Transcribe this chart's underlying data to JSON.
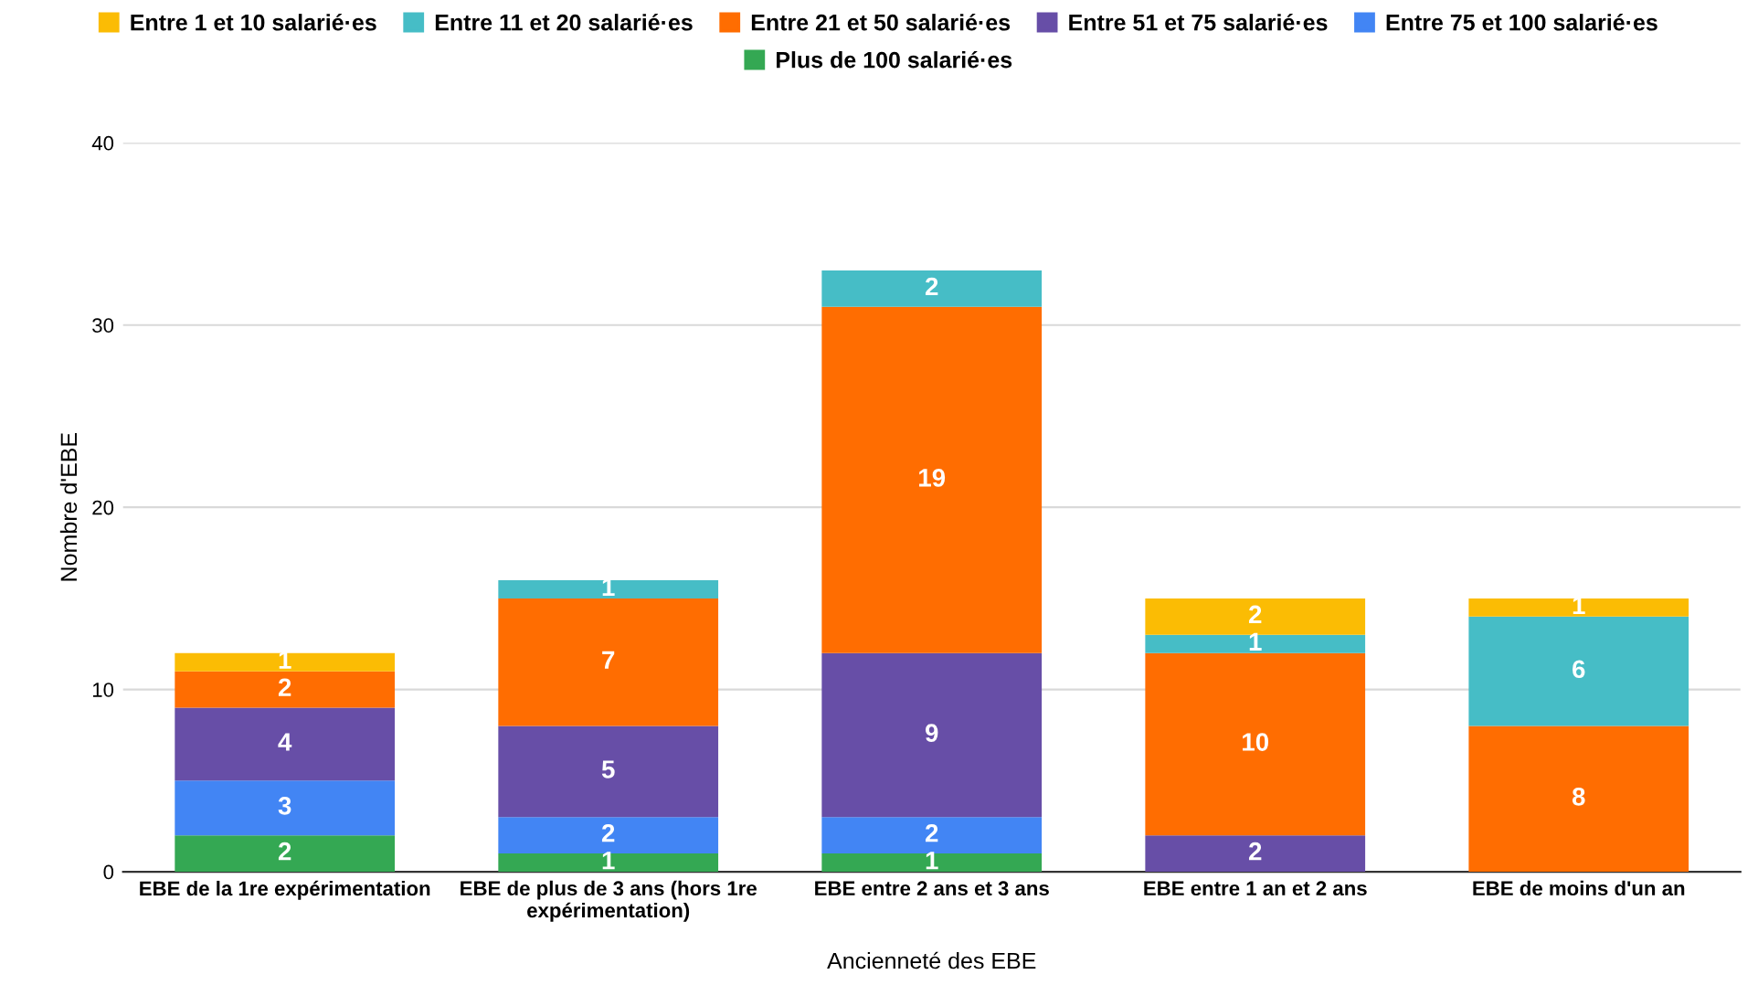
{
  "chart_data": {
    "type": "bar",
    "stacked": true,
    "xlabel": "Ancienneté des EBE",
    "ylabel": "Nombre d'EBE",
    "categories": [
      "EBE de la 1re expérimentation",
      "EBE de plus de 3 ans (hors 1re\nexpérimentation)",
      "EBE entre 2 ans et 3 ans",
      "EBE entre 1 an et 2 ans",
      "EBE de moins d'un an"
    ],
    "series": [
      {
        "name": "Plus de 100 salarié·es",
        "color": "#34a853",
        "values": [
          2,
          1,
          1,
          null,
          null
        ]
      },
      {
        "name": "Entre 75 et 100 salarié·es",
        "color": "#4285f4",
        "values": [
          3,
          2,
          2,
          null,
          null
        ]
      },
      {
        "name": "Entre 51 et 75 salarié·es",
        "color": "#674ea7",
        "values": [
          4,
          5,
          9,
          2,
          null
        ]
      },
      {
        "name": "Entre 21 et 50 salarié·es",
        "color": "#ff6d01",
        "values": [
          2,
          7,
          19,
          10,
          8
        ]
      },
      {
        "name": "Entre 11 et 20 salarié·es",
        "color": "#46bdc6",
        "values": [
          null,
          1,
          2,
          1,
          6
        ]
      },
      {
        "name": "Entre 1 et 10 salarié·es",
        "color": "#fbbc04",
        "values": [
          1,
          null,
          null,
          2,
          1
        ]
      }
    ],
    "ylim": [
      0,
      40
    ],
    "yticks": [
      0,
      10,
      20,
      30,
      40
    ],
    "grid": "y",
    "legend": "top",
    "data_labels": true
  }
}
